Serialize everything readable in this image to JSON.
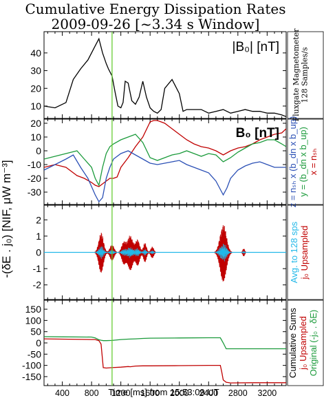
{
  "title_line1": "Cumulative Energy Dissipation Rates",
  "title_line2": "2009-09-26 [~3.34 s Window]",
  "ylabel": "-(δE . j₀) [NIF, μW m⁻³]",
  "xlabel": "Time [ms] from 15:53:09 UT",
  "colors": {
    "black": "#000000",
    "red": "#c00000",
    "green": "#1a9a3a",
    "blue": "#2a4fb5",
    "cyan": "#22b8e8",
    "marker": "#66cc33"
  },
  "marker_x": 1080,
  "chart_data": [
    {
      "type": "line",
      "panel": "|B0|",
      "annotation": "|B₀| [nT]",
      "side_label": [
        "Fluxgate Magnetometer",
        "128 Samples/s"
      ],
      "xlim": [
        150,
        3460
      ],
      "ylim": [
        3,
        52
      ],
      "yticks": [
        10,
        20,
        30,
        40
      ],
      "series": [
        {
          "color": "black",
          "x": [
            150,
            300,
            450,
            550,
            650,
            750,
            850,
            900,
            950,
            1000,
            1030,
            1080,
            1120,
            1160,
            1200,
            1230,
            1260,
            1300,
            1350,
            1400,
            1450,
            1500,
            1550,
            1600,
            1650,
            1700,
            1750,
            1800,
            1900,
            2000,
            2050,
            2100,
            2200,
            2300,
            2400,
            2500,
            2600,
            2700,
            2800,
            2900,
            3000,
            3100,
            3200,
            3300,
            3400,
            3460
          ],
          "y": [
            10,
            9,
            12,
            25,
            31,
            36,
            44,
            48,
            40,
            34,
            31,
            27,
            18,
            10,
            9,
            12,
            24,
            23,
            13,
            11,
            15,
            24,
            15,
            9,
            7,
            6,
            8,
            20,
            25,
            17,
            7,
            8,
            8,
            8,
            6,
            7,
            8,
            6,
            7,
            8,
            7,
            7,
            6,
            6,
            5,
            4
          ]
        }
      ]
    },
    {
      "type": "line",
      "panel": "B0",
      "annotation": "B₀ [nT]",
      "side_label": [
        "z = nₛₕ x (b_dn x b_up)",
        "y = (b_dn x b_up)",
        "x = nₛₕ"
      ],
      "xlim": [
        150,
        3460
      ],
      "ylim": [
        -39,
        23
      ],
      "yticks": [
        -30,
        -20,
        -10,
        0,
        10,
        20
      ],
      "series": [
        {
          "name": "x = nsh",
          "color": "red",
          "x": [
            150,
            300,
            450,
            600,
            700,
            800,
            850,
            900,
            950,
            1000,
            1050,
            1100,
            1150,
            1200,
            1300,
            1400,
            1500,
            1600,
            1650,
            1700,
            1800,
            1900,
            2000,
            2100,
            2200,
            2300,
            2400,
            2500,
            2600,
            2700,
            2800,
            2900,
            3000,
            3100,
            3200,
            3300,
            3400,
            3460
          ],
          "y": [
            -12,
            -10,
            -12,
            -18,
            -20,
            -23,
            -25,
            -26,
            -24,
            -22,
            -20,
            -20,
            -19,
            -12,
            -5,
            3,
            10,
            21,
            22,
            22,
            20,
            16,
            12,
            8,
            5,
            3,
            2,
            0,
            -3,
            0,
            2,
            3,
            5,
            8,
            10,
            12,
            13,
            16
          ]
        },
        {
          "name": "y = (bdn x bup)",
          "color": "green",
          "x": [
            150,
            300,
            450,
            600,
            700,
            800,
            850,
            900,
            950,
            1000,
            1050,
            1100,
            1200,
            1300,
            1400,
            1500,
            1600,
            1700,
            1800,
            1900,
            2000,
            2100,
            2200,
            2300,
            2400,
            2500,
            2600,
            2700,
            2800,
            2900,
            3000,
            3100,
            3200,
            3300,
            3400,
            3460
          ],
          "y": [
            -6,
            -4,
            -2,
            0,
            -6,
            -12,
            -20,
            -25,
            -12,
            -2,
            3,
            5,
            8,
            10,
            12,
            6,
            -5,
            -7,
            -5,
            -3,
            -2,
            0,
            -2,
            -4,
            -2,
            -3,
            -8,
            -5,
            -1,
            2,
            5,
            6,
            8,
            8,
            5,
            3
          ]
        },
        {
          "name": "z = nsh x (bdn x bup)",
          "color": "blue",
          "x": [
            150,
            300,
            450,
            550,
            650,
            750,
            800,
            850,
            900,
            950,
            1000,
            1050,
            1100,
            1200,
            1300,
            1400,
            1500,
            1600,
            1700,
            1800,
            1900,
            2000,
            2100,
            2200,
            2300,
            2400,
            2500,
            2550,
            2600,
            2650,
            2700,
            2800,
            2900,
            3000,
            3100,
            3200,
            3300,
            3400,
            3460
          ],
          "y": [
            -14,
            -10,
            -6,
            -3,
            -12,
            -20,
            -26,
            -32,
            -37,
            -34,
            -20,
            -12,
            -6,
            -2,
            0,
            -3,
            -6,
            -9,
            -10,
            -9,
            -8,
            -7,
            -10,
            -12,
            -14,
            -16,
            -22,
            -27,
            -32,
            -27,
            -20,
            -14,
            -11,
            -9,
            -8,
            -10,
            -12,
            -12,
            -12
          ]
        }
      ]
    },
    {
      "type": "line",
      "panel": "-(dE . j0)",
      "side_label": [
        "Avg. to 128 sps",
        "j₀ Upsampled"
      ],
      "xlim": [
        150,
        3460
      ],
      "ylim": [
        -2.9,
        2.9
      ],
      "yticks": [
        -2,
        -1,
        0,
        1,
        2
      ],
      "bursts": [
        [
          930,
          1.25,
          45
        ],
        [
          1080,
          0.5,
          40
        ],
        [
          1240,
          0.7,
          40
        ],
        [
          1330,
          1.1,
          50
        ],
        [
          1430,
          0.8,
          40
        ],
        [
          1530,
          0.6,
          30
        ],
        [
          1630,
          0.35,
          30
        ],
        [
          2600,
          1.8,
          60
        ],
        [
          2880,
          0.25,
          20
        ]
      ],
      "series": [
        {
          "name": "j0 Upsampled",
          "color": "red"
        },
        {
          "name": "Avg. to 128 sps",
          "color": "cyan"
        }
      ]
    },
    {
      "type": "line",
      "panel": "Cumulative Sums",
      "side_label": [
        "Cumulative Sums",
        "j₀ Upsampled",
        "Original (-j₀ . δE)"
      ],
      "xlim": [
        150,
        3460
      ],
      "ylim": [
        -190,
        190
      ],
      "yticks": [
        -150,
        -100,
        -50,
        0,
        50,
        100,
        150
      ],
      "xticks": [
        400,
        800,
        1200,
        1600,
        2000,
        2400,
        2800,
        3200
      ],
      "xticklabels": [
        "400",
        "800",
        "1200",
        "1600",
        "2000",
        "2400",
        "2800",
        "3200"
      ],
      "series": [
        {
          "name": "Original (-j0 . dE)",
          "color": "green",
          "x": [
            150,
            400,
            800,
            850,
            900,
            930,
            960,
            1000,
            1080,
            1200,
            1300,
            1400,
            1500,
            1600,
            2000,
            2400,
            2560,
            2600,
            2640,
            2700,
            3000,
            3460
          ],
          "y": [
            28,
            27,
            26,
            22,
            14,
            12,
            10,
            10,
            11,
            15,
            17,
            18,
            20,
            21,
            22,
            23,
            23,
            0,
            -26,
            -26,
            -26,
            -26
          ]
        },
        {
          "name": "j0 Upsampled",
          "color": "red",
          "x": [
            150,
            400,
            800,
            850,
            900,
            930,
            960,
            1000,
            1080,
            1200,
            1300,
            1330,
            1400,
            1500,
            1600,
            2000,
            2400,
            2560,
            2580,
            2600,
            2640,
            2700,
            3000,
            3460
          ],
          "y": [
            18,
            17,
            15,
            15,
            10,
            -5,
            -110,
            -112,
            -110,
            -108,
            -105,
            -106,
            -103,
            -102,
            -102,
            -101,
            -100,
            -100,
            -130,
            -165,
            -175,
            -178,
            -177,
            -177
          ]
        }
      ]
    }
  ]
}
